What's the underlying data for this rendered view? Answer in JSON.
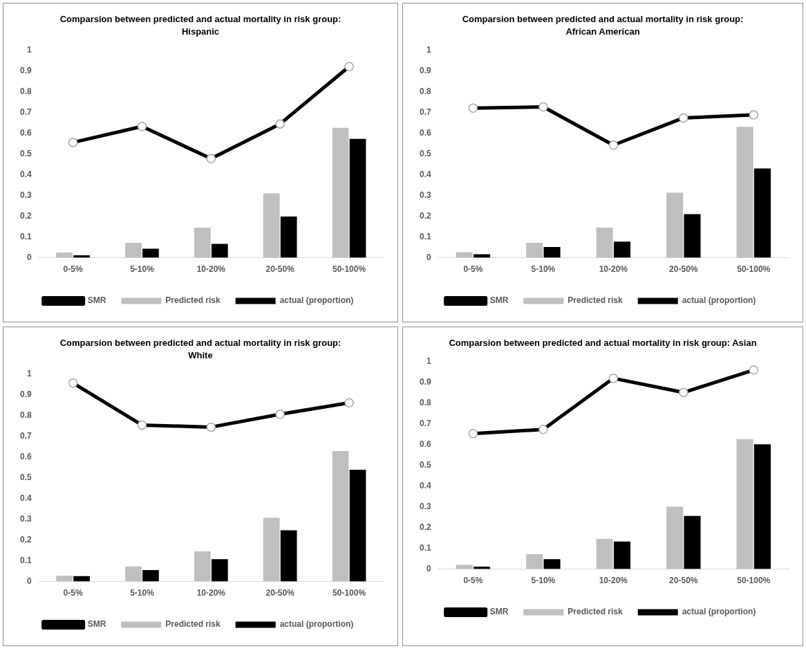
{
  "chart_data": [
    {
      "type": "bar",
      "title": "Comparsion between predicted and actual mortality in risk group: Hispanic",
      "categories": [
        "0-5%",
        "5-10%",
        "10-20%",
        "20-50%",
        "50-100%"
      ],
      "series": [
        {
          "name": "Predicted risk",
          "color": "#bfbfbf",
          "values": [
            0.025,
            0.072,
            0.145,
            0.31,
            0.625
          ]
        },
        {
          "name": "actual (proportion)",
          "color": "#000000",
          "values": [
            0.012,
            0.044,
            0.067,
            0.198,
            0.572
          ]
        },
        {
          "name": "SMR",
          "type": "line",
          "color": "#000000",
          "values": [
            0.555,
            0.632,
            0.477,
            0.644,
            0.92
          ]
        }
      ],
      "ylim": [
        0,
        1
      ],
      "yticks": [
        0,
        0.1,
        0.2,
        0.3,
        0.4,
        0.5,
        0.6,
        0.7,
        0.8,
        0.9,
        1
      ],
      "grid": false,
      "legend": "bottom",
      "marker": "circle",
      "line_style": "solid"
    },
    {
      "type": "bar",
      "title": "Comparsion between predicted and actual mortality in risk group: African American",
      "categories": [
        "0-5%",
        "5-10%",
        "10-20%",
        "20-50%",
        "50-100%"
      ],
      "series": [
        {
          "name": "Predicted risk",
          "color": "#bfbfbf",
          "values": [
            0.027,
            0.072,
            0.145,
            0.313,
            0.63
          ]
        },
        {
          "name": "actual (proportion)",
          "color": "#000000",
          "values": [
            0.017,
            0.052,
            0.078,
            0.21,
            0.43
          ]
        },
        {
          "name": "SMR",
          "type": "line",
          "color": "#000000",
          "values": [
            0.72,
            0.726,
            0.542,
            0.673,
            0.688
          ]
        }
      ],
      "ylim": [
        0,
        1
      ],
      "yticks": [
        0,
        0.1,
        0.2,
        0.3,
        0.4,
        0.5,
        0.6,
        0.7,
        0.8,
        0.9,
        1
      ],
      "grid": false,
      "legend": "bottom",
      "marker": "circle",
      "line_style": "solid"
    },
    {
      "type": "bar",
      "title": "Comparsion between predicted and actual mortality in risk group: White",
      "categories": [
        "0-5%",
        "5-10%",
        "10-20%",
        "20-50%",
        "50-100%"
      ],
      "series": [
        {
          "name": "Predicted risk",
          "color": "#bfbfbf",
          "values": [
            0.028,
            0.073,
            0.145,
            0.307,
            0.628
          ]
        },
        {
          "name": "actual (proportion)",
          "color": "#000000",
          "values": [
            0.026,
            0.055,
            0.108,
            0.247,
            0.538
          ]
        },
        {
          "name": "SMR",
          "type": "line",
          "color": "#000000",
          "values": [
            0.955,
            0.753,
            0.743,
            0.805,
            0.86
          ]
        }
      ],
      "ylim": [
        0,
        1
      ],
      "yticks": [
        0,
        0.1,
        0.2,
        0.3,
        0.4,
        0.5,
        0.6,
        0.7,
        0.8,
        0.9,
        1
      ],
      "grid": false,
      "legend": "bottom",
      "marker": "circle",
      "line_style": "solid"
    },
    {
      "type": "bar",
      "title": "Comparsion between predicted and actual mortality in risk group: Asian",
      "categories": [
        "0-5%",
        "5-10%",
        "10-20%",
        "20-50%",
        "50-100%"
      ],
      "series": [
        {
          "name": "Predicted risk",
          "color": "#bfbfbf",
          "values": [
            0.02,
            0.072,
            0.145,
            0.3,
            0.625
          ]
        },
        {
          "name": "actual (proportion)",
          "color": "#000000",
          "values": [
            0.012,
            0.048,
            0.133,
            0.256,
            0.6
          ]
        },
        {
          "name": "SMR",
          "type": "line",
          "color": "#000000",
          "values": [
            0.652,
            0.672,
            0.918,
            0.85,
            0.958
          ]
        }
      ],
      "ylim": [
        0,
        1
      ],
      "yticks": [
        0,
        0.1,
        0.2,
        0.3,
        0.4,
        0.5,
        0.6,
        0.7,
        0.8,
        0.9,
        1
      ],
      "grid": false,
      "legend": "bottom",
      "marker": "circle",
      "line_style": "solid"
    }
  ]
}
